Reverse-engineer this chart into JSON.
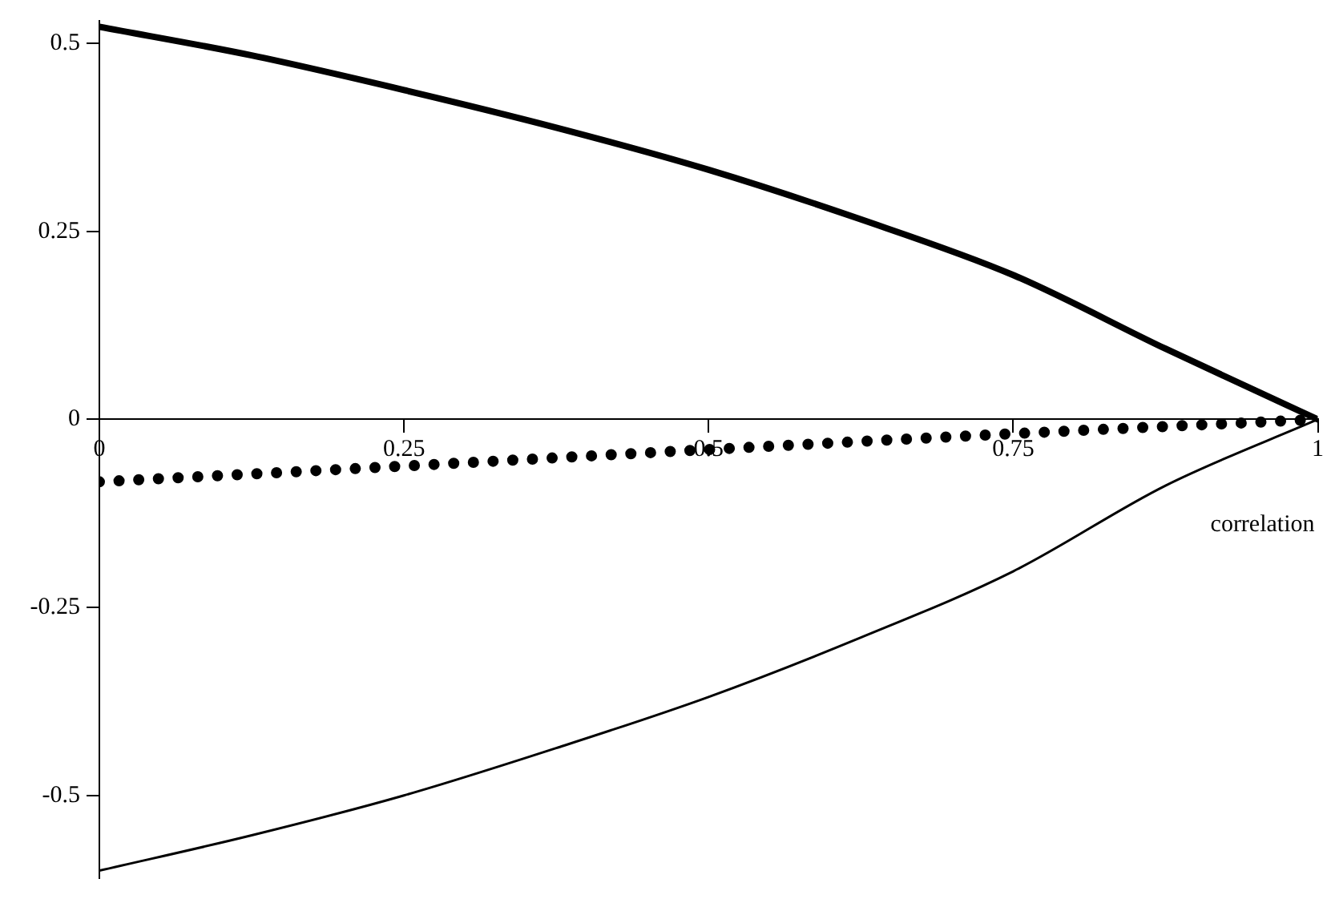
{
  "chart_data": {
    "type": "line",
    "xlabel": "correlation",
    "xlim": [
      0,
      1
    ],
    "ylim": [
      -0.61,
      0.53
    ],
    "xticks": [
      0,
      0.25,
      0.5,
      0.75,
      1
    ],
    "yticks": [
      -0.5,
      -0.25,
      0,
      0.25,
      0.5
    ],
    "grid": false,
    "legend": false,
    "marker": "none",
    "series": [
      {
        "color": "#000000",
        "line_style": "solid",
        "x": [
          0,
          0.125,
          0.25,
          0.375,
          0.5,
          0.625,
          0.75,
          0.875,
          1
        ],
        "values": [
          0.522,
          0.484,
          0.438,
          0.388,
          0.332,
          0.266,
          0.192,
          0.094,
          0
        ]
      },
      {
        "color": "#000000",
        "line_style": "dotted",
        "x": [
          0,
          0.25,
          0.5,
          0.75,
          1
        ],
        "values": [
          -0.083,
          -0.062,
          -0.04,
          -0.019,
          0
        ]
      },
      {
        "color": "#000000",
        "line_style": "solid",
        "x": [
          0,
          0.125,
          0.25,
          0.375,
          0.5,
          0.625,
          0.75,
          0.875,
          1
        ],
        "values": [
          -0.6,
          -0.553,
          -0.5,
          -0.437,
          -0.369,
          -0.29,
          -0.202,
          -0.088,
          0
        ]
      }
    ]
  }
}
